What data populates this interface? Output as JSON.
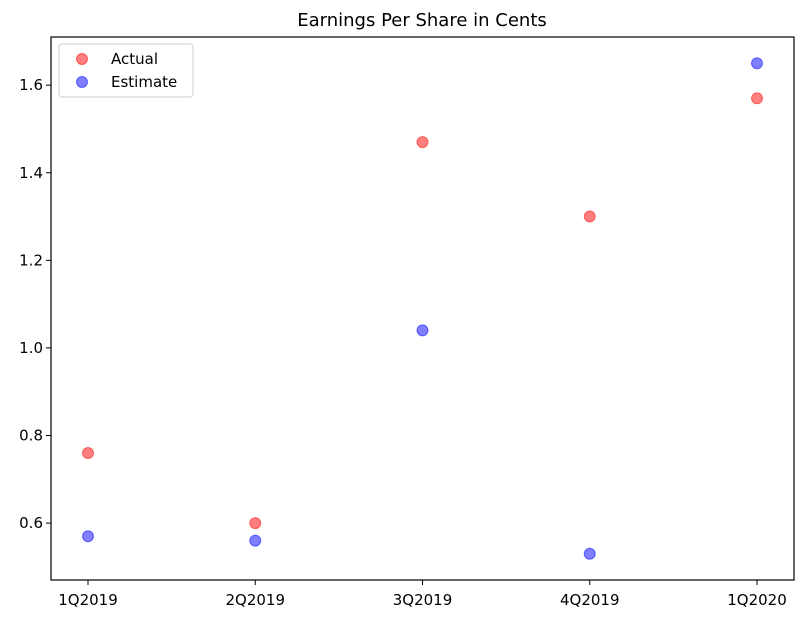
{
  "chart_data": {
    "type": "scatter",
    "title": "Earnings Per Share in Cents",
    "xlabel": "",
    "ylabel": "",
    "categories": [
      "1Q2019",
      "2Q2019",
      "3Q2019",
      "4Q2019",
      "1Q2020"
    ],
    "ylim": [
      0.47,
      1.71
    ],
    "yticks": [
      0.6,
      0.8,
      1.0,
      1.2,
      1.4,
      1.6
    ],
    "ytick_labels": [
      "0.6",
      "0.8",
      "1.0",
      "1.2",
      "1.4",
      "1.6"
    ],
    "grid": false,
    "legend_position": "top-left",
    "series": [
      {
        "name": "Actual",
        "color": "#ff0000",
        "values": [
          0.76,
          0.6,
          1.47,
          1.3,
          1.57
        ]
      },
      {
        "name": "Estimate",
        "color": "#0000ff",
        "values": [
          0.57,
          0.56,
          1.04,
          0.53,
          1.65
        ]
      }
    ]
  }
}
